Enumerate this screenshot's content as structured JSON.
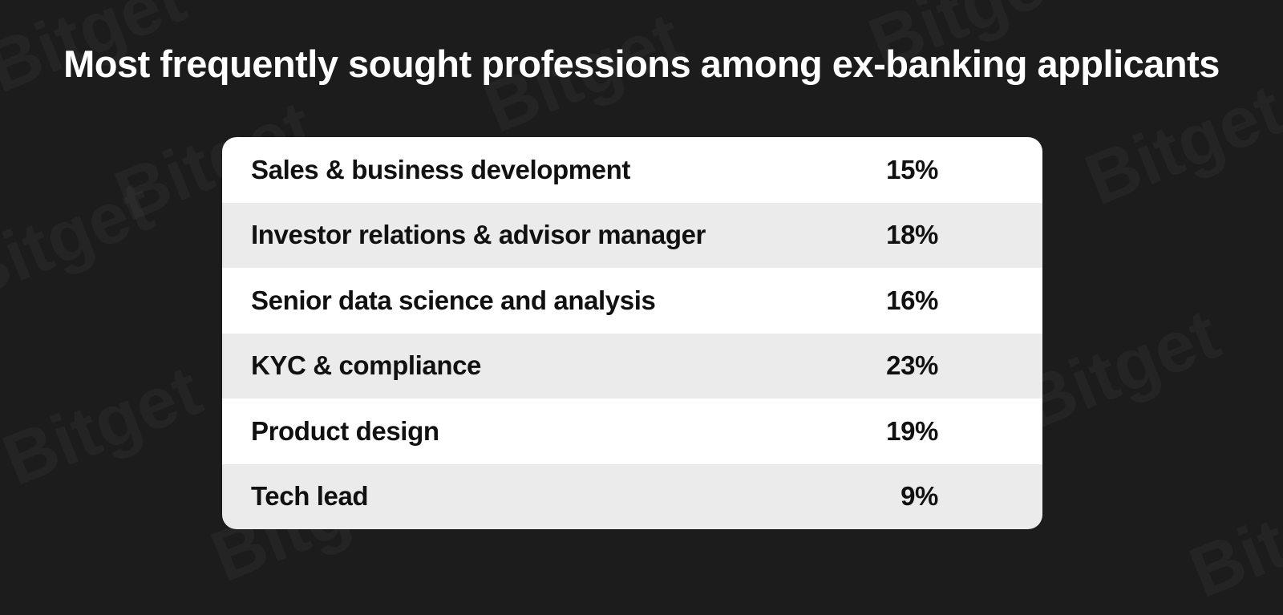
{
  "title": "Most frequently sought professions among ex-banking applicants",
  "watermark": "Bitget",
  "table": {
    "rows": [
      [
        "Sales & business development",
        "15%"
      ],
      [
        "Investor relations & advisor manager",
        "18%"
      ],
      [
        "Senior data science and analysis",
        "16%"
      ],
      [
        "KYC & compliance",
        "23%"
      ],
      [
        "Product design",
        "19%"
      ],
      [
        "Tech lead",
        "9%"
      ]
    ]
  }
}
